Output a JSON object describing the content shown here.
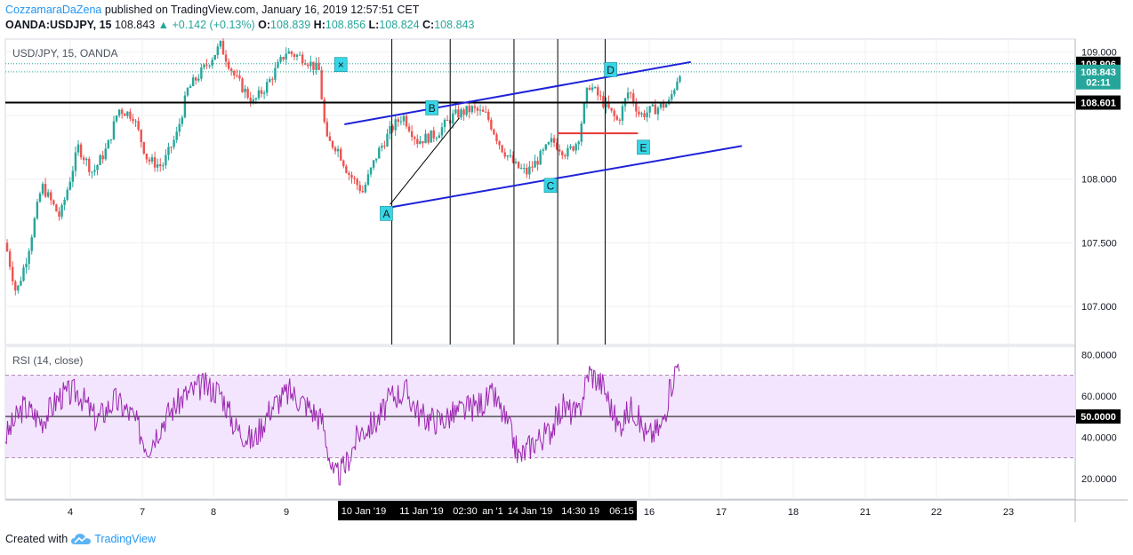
{
  "header": {
    "author": "CozzamaraDaZena",
    "published": "published on TradingView.com, January 16, 2019 12:57:51 CET",
    "symbol": "OANDA:USDJPY, 15",
    "last": "108.843",
    "arrow": "▲",
    "change": "+0.142 (+0.13%)",
    "o_label": "O:",
    "o_val": "108.839",
    "h_label": "H:",
    "h_val": "108.856",
    "l_label": "L:",
    "l_val": "108.824",
    "c_label": "C:",
    "c_val": "108.843"
  },
  "footer": {
    "created_with": "Created with",
    "brand": "TradingView",
    "logo_icon": "tradingview-cloud-icon"
  },
  "colors": {
    "up": "#26a69a",
    "down": "#ef5350",
    "rsi": "#9c27b0",
    "rsi_band": "#f3e5fd",
    "channel": "#1e22d9",
    "marker": "#37d6e6",
    "red_line": "#e53935",
    "accent": "#2196f3"
  },
  "chart_data": [
    {
      "type": "candlestick",
      "title": "USD/JPY, 15, OANDA",
      "ylim": [
        106.7,
        109.1
      ],
      "y_ticks": [
        "109.000",
        "108.000",
        "107.500",
        "107.000"
      ],
      "price_labels": [
        {
          "text": "108.906",
          "value": 108.906,
          "style": "dark"
        },
        {
          "text": "108.843",
          "value": 108.843,
          "style": "green"
        },
        {
          "text": "02:11",
          "value": 108.76,
          "style": "green"
        },
        {
          "text": "108.601",
          "value": 108.601,
          "style": "dark"
        }
      ],
      "x_ticks": [
        "4",
        "7",
        "8",
        "9",
        "16",
        "17",
        "18",
        "21",
        "22",
        "23"
      ],
      "x_highlight": [
        "10 Jan '19",
        "11 Jan '19",
        "02:30",
        "an '1",
        "14 Jan '19",
        "14:30",
        "19",
        "06:15"
      ],
      "price_path": [
        {
          "t": 0.0,
          "p": 107.5
        },
        {
          "t": 0.3,
          "p": 107.1
        },
        {
          "t": 0.6,
          "p": 107.4
        },
        {
          "t": 1.0,
          "p": 107.95
        },
        {
          "t": 1.5,
          "p": 107.7
        },
        {
          "t": 2.0,
          "p": 108.25
        },
        {
          "t": 2.4,
          "p": 108.05
        },
        {
          "t": 2.8,
          "p": 108.25
        },
        {
          "t": 3.1,
          "p": 108.55
        },
        {
          "t": 3.5,
          "p": 108.5
        },
        {
          "t": 3.9,
          "p": 108.15
        },
        {
          "t": 4.3,
          "p": 108.1
        },
        {
          "t": 4.7,
          "p": 108.35
        },
        {
          "t": 5.0,
          "p": 108.7
        },
        {
          "t": 5.4,
          "p": 108.85
        },
        {
          "t": 5.9,
          "p": 109.05
        },
        {
          "t": 6.3,
          "p": 108.8
        },
        {
          "t": 6.8,
          "p": 108.6
        },
        {
          "t": 7.2,
          "p": 108.75
        },
        {
          "t": 7.7,
          "p": 109.0
        },
        {
          "t": 8.2,
          "p": 108.95
        },
        {
          "t": 8.6,
          "p": 108.85
        },
        {
          "t": 8.8,
          "p": 108.3
        },
        {
          "t": 9.1,
          "p": 108.25
        },
        {
          "t": 9.4,
          "p": 108.05
        },
        {
          "t": 9.8,
          "p": 107.9
        },
        {
          "t": 10.2,
          "p": 108.2
        },
        {
          "t": 10.6,
          "p": 108.4
        },
        {
          "t": 10.9,
          "p": 108.5
        },
        {
          "t": 11.3,
          "p": 108.3
        },
        {
          "t": 11.8,
          "p": 108.35
        },
        {
          "t": 12.3,
          "p": 108.5
        },
        {
          "t": 12.8,
          "p": 108.55
        },
        {
          "t": 13.2,
          "p": 108.5
        },
        {
          "t": 13.6,
          "p": 108.25
        },
        {
          "t": 14.0,
          "p": 108.1
        },
        {
          "t": 14.3,
          "p": 108.05
        },
        {
          "t": 14.6,
          "p": 108.15
        },
        {
          "t": 15.0,
          "p": 108.3
        },
        {
          "t": 15.4,
          "p": 108.2
        },
        {
          "t": 15.7,
          "p": 108.3
        },
        {
          "t": 16.0,
          "p": 108.75
        },
        {
          "t": 16.4,
          "p": 108.6
        },
        {
          "t": 16.8,
          "p": 108.45
        },
        {
          "t": 17.1,
          "p": 108.7
        },
        {
          "t": 17.4,
          "p": 108.5
        },
        {
          "t": 17.8,
          "p": 108.55
        },
        {
          "t": 18.2,
          "p": 108.6
        },
        {
          "t": 18.5,
          "p": 108.85
        }
      ],
      "vertical_lines_t": [
        10.6,
        12.2,
        13.95,
        15.15,
        16.45
      ],
      "horizontal_line": 108.601,
      "dotted_lines": [
        108.906,
        108.843
      ],
      "channel": {
        "upper": [
          {
            "t": 9.3,
            "p": 108.43
          },
          {
            "t": 18.8,
            "p": 108.92
          }
        ],
        "lower": [
          {
            "t": 10.4,
            "p": 107.77
          },
          {
            "t": 20.2,
            "p": 108.26
          }
        ]
      },
      "trend_line": [
        {
          "t": 10.55,
          "p": 107.8
        },
        {
          "t": 12.45,
          "p": 108.48
        }
      ],
      "red_segment": [
        {
          "t": 15.15,
          "p": 108.36
        },
        {
          "t": 17.35,
          "p": 108.36
        }
      ],
      "points": [
        {
          "label": "×",
          "t": 9.2,
          "p": 108.9
        },
        {
          "label": "A",
          "t": 10.45,
          "p": 107.73
        },
        {
          "label": "B",
          "t": 11.7,
          "p": 108.56
        },
        {
          "label": "C",
          "t": 14.95,
          "p": 107.95
        },
        {
          "label": "D",
          "t": 16.6,
          "p": 108.86
        },
        {
          "label": "E",
          "t": 17.5,
          "p": 108.25
        }
      ]
    },
    {
      "type": "line",
      "title": "RSI (14, close)",
      "ylim": [
        10,
        84
      ],
      "y_ticks": [
        "80.0000",
        "60.0000",
        "40.0000",
        "20.0000"
      ],
      "level_label": "50.0000",
      "band": [
        30,
        70
      ],
      "midline": 50,
      "rsi_path": [
        {
          "t": 0.0,
          "v": 40
        },
        {
          "t": 0.5,
          "v": 55
        },
        {
          "t": 1.0,
          "v": 48
        },
        {
          "t": 1.5,
          "v": 60
        },
        {
          "t": 2.0,
          "v": 62
        },
        {
          "t": 2.5,
          "v": 48
        },
        {
          "t": 3.0,
          "v": 58
        },
        {
          "t": 3.5,
          "v": 50
        },
        {
          "t": 3.9,
          "v": 35
        },
        {
          "t": 4.4,
          "v": 50
        },
        {
          "t": 4.9,
          "v": 60
        },
        {
          "t": 5.4,
          "v": 65
        },
        {
          "t": 5.9,
          "v": 62
        },
        {
          "t": 6.3,
          "v": 45
        },
        {
          "t": 6.8,
          "v": 38
        },
        {
          "t": 7.3,
          "v": 55
        },
        {
          "t": 7.8,
          "v": 62
        },
        {
          "t": 8.3,
          "v": 55
        },
        {
          "t": 8.7,
          "v": 48
        },
        {
          "t": 9.0,
          "v": 20
        },
        {
          "t": 9.3,
          "v": 25
        },
        {
          "t": 9.7,
          "v": 42
        },
        {
          "t": 10.2,
          "v": 48
        },
        {
          "t": 10.6,
          "v": 60
        },
        {
          "t": 11.0,
          "v": 62
        },
        {
          "t": 11.4,
          "v": 50
        },
        {
          "t": 11.9,
          "v": 48
        },
        {
          "t": 12.4,
          "v": 52
        },
        {
          "t": 12.9,
          "v": 55
        },
        {
          "t": 13.4,
          "v": 60
        },
        {
          "t": 13.8,
          "v": 45
        },
        {
          "t": 14.1,
          "v": 30
        },
        {
          "t": 14.5,
          "v": 38
        },
        {
          "t": 14.9,
          "v": 42
        },
        {
          "t": 15.3,
          "v": 55
        },
        {
          "t": 15.7,
          "v": 50
        },
        {
          "t": 16.0,
          "v": 72
        },
        {
          "t": 16.4,
          "v": 65
        },
        {
          "t": 16.8,
          "v": 45
        },
        {
          "t": 17.2,
          "v": 55
        },
        {
          "t": 17.6,
          "v": 40
        },
        {
          "t": 18.0,
          "v": 45
        },
        {
          "t": 18.3,
          "v": 68
        },
        {
          "t": 18.5,
          "v": 79
        }
      ]
    }
  ]
}
